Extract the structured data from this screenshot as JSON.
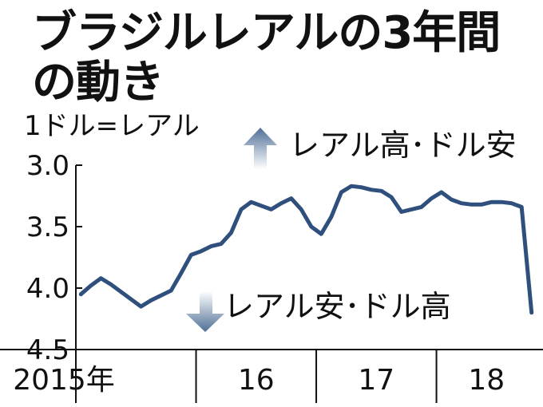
{
  "chart_data": {
    "type": "line",
    "title_lines": [
      "ブラジルレアルの3年間",
      "の動き"
    ],
    "ylabel": "1ドル=レアル",
    "annotations": {
      "up": "レアル高･ドル安",
      "down": "レアル安･ドル高"
    },
    "y_axis": {
      "inverted": true,
      "ylim": [
        3.0,
        4.5
      ],
      "ticks": [
        "3.0",
        "3.5",
        "4.0",
        "4.5"
      ]
    },
    "x_axis": {
      "range": [
        "2015-01",
        "2018-10"
      ],
      "category_labels": [
        "2015年",
        "16",
        "17",
        "18"
      ],
      "year_boundaries": [
        "2016-01",
        "2017-01",
        "2018-01"
      ]
    },
    "grid": false,
    "colors": {
      "line": "#2f4f7c",
      "arrow_top": "#4f6f97",
      "arrow_fade": "#ffffff",
      "axis": "#111111"
    },
    "series": [
      {
        "x": [
          "2015-01",
          "2015-02",
          "2015-03",
          "2015-04",
          "2015-05",
          "2015-06",
          "2015-07",
          "2015-08",
          "2015-09",
          "2015-10",
          "2015-11",
          "2015-12",
          "2016-01",
          "2016-02",
          "2016-03",
          "2016-04",
          "2016-05",
          "2016-06",
          "2016-07",
          "2016-08",
          "2016-09",
          "2016-10",
          "2016-11",
          "2016-12",
          "2017-01",
          "2017-02",
          "2017-03",
          "2017-04",
          "2017-05",
          "2017-06",
          "2017-07",
          "2017-08",
          "2017-09",
          "2017-10",
          "2017-11",
          "2017-12",
          "2018-01",
          "2018-02",
          "2018-03",
          "2018-04",
          "2018-05",
          "2018-06",
          "2018-07",
          "2018-08",
          "2018-09",
          "2018-10"
        ],
        "values": [
          4.05,
          3.98,
          3.92,
          3.97,
          4.03,
          4.09,
          4.15,
          4.1,
          4.06,
          4.02,
          3.88,
          3.73,
          3.7,
          3.66,
          3.64,
          3.55,
          3.36,
          3.3,
          3.33,
          3.36,
          3.31,
          3.27,
          3.36,
          3.5,
          3.56,
          3.42,
          3.22,
          3.17,
          3.18,
          3.2,
          3.21,
          3.26,
          3.38,
          3.36,
          3.34,
          3.27,
          3.22,
          3.28,
          3.31,
          3.32,
          3.32,
          3.3,
          3.3,
          3.31,
          3.34,
          4.2
        ]
      }
    ]
  }
}
